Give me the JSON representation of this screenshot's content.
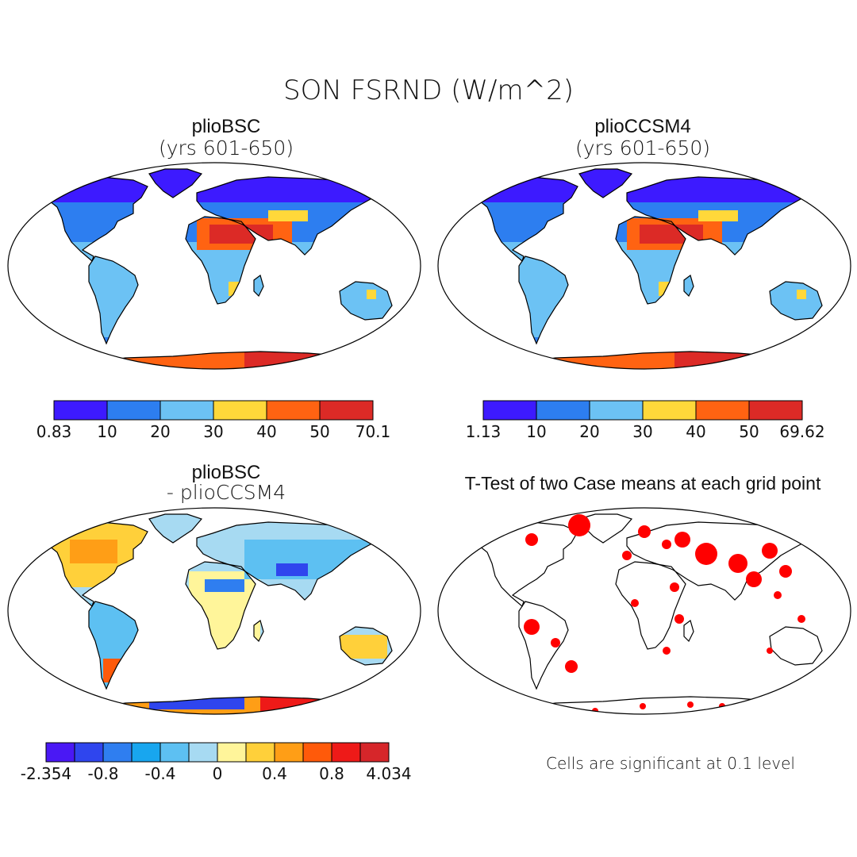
{
  "figure": {
    "title": "SON FSRND (W/m^2)",
    "footnote": "Cells are significant at 0.1 level"
  },
  "panels": [
    {
      "id": "top-left",
      "title": "plioBSC",
      "subtitle": "(yrs 601-650)",
      "type": "map-field",
      "colorbar": {
        "colors": [
          "#3d1aff",
          "#2d7ef0",
          "#6cc2f4",
          "#ffd83a",
          "#ff6312",
          "#dc2a26"
        ],
        "ticks": [
          "0.83",
          "10",
          "20",
          "30",
          "40",
          "50",
          "70.1"
        ]
      }
    },
    {
      "id": "top-right",
      "title": "plioCCSM4",
      "subtitle": "(yrs 601-650)",
      "type": "map-field",
      "colorbar": {
        "colors": [
          "#3d1aff",
          "#2d7ef0",
          "#6cc2f4",
          "#ffd83a",
          "#ff6312",
          "#dc2a26"
        ],
        "ticks": [
          "1.13",
          "10",
          "20",
          "30",
          "40",
          "50",
          "69.62"
        ]
      }
    },
    {
      "id": "bottom-left",
      "title": "plioBSC",
      "subtitle": "- plioCCSM4",
      "type": "map-difference",
      "colorbar": {
        "colors": [
          "#4a18f5",
          "#2f45ee",
          "#2f7ef0",
          "#18a6ef",
          "#5dc0f2",
          "#a7daf2",
          "#fff59a",
          "#ffd03a",
          "#ff9e16",
          "#ff5a0a",
          "#ee1a18",
          "#d6262a"
        ],
        "ticks": [
          "-2.354",
          "-0.8",
          "-0.4",
          "0",
          "0.4",
          "0.8",
          "4.034"
        ]
      }
    },
    {
      "id": "bottom-right",
      "title": "T-Test of two Case means at each grid point",
      "type": "map-significance",
      "significance_color": "#ff0000"
    }
  ]
}
